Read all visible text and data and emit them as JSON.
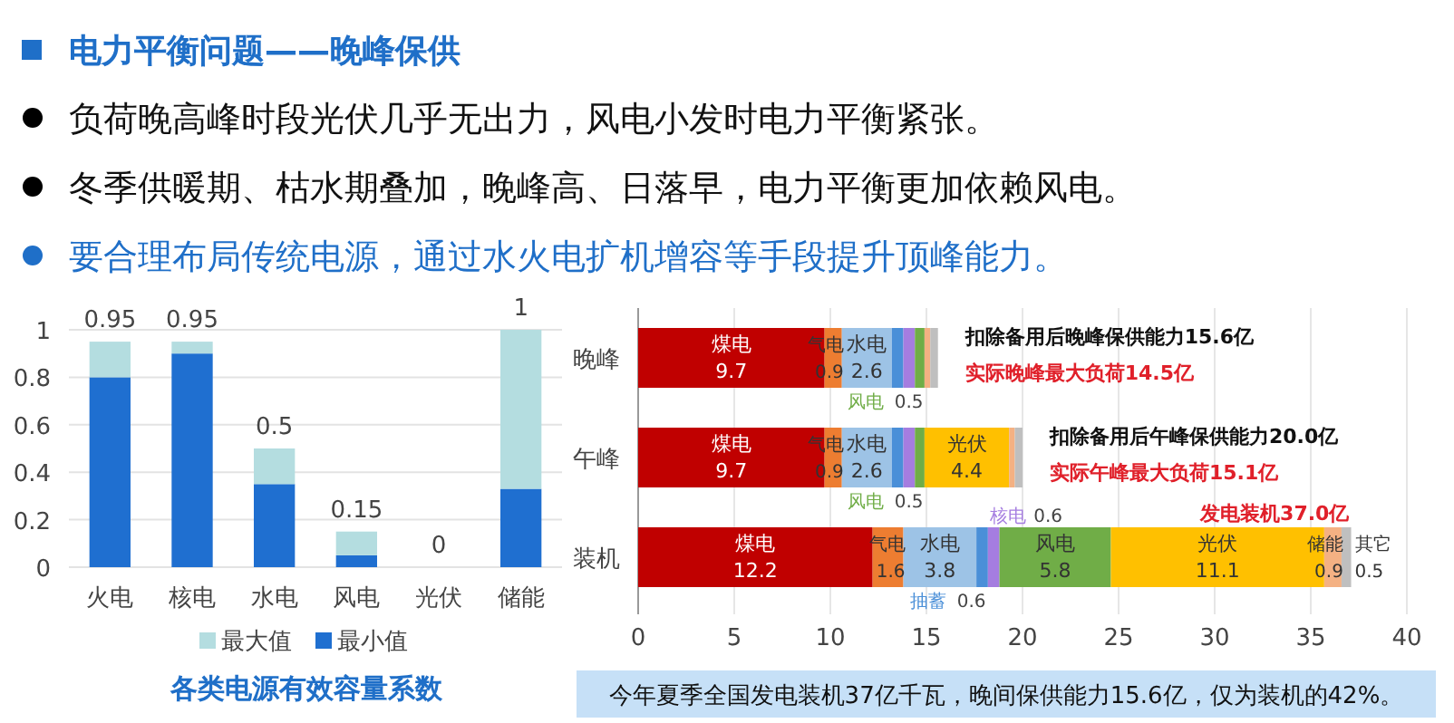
{
  "chart_data": [
    {
      "type": "other",
      "title": "电力平衡问题——晚峰保供",
      "annotations": [
        "负荷晚高峰时段光伏几乎无出力，风电小发时电力平衡紧张。",
        "冬季供暖期、枯水期叠加，晚峰高、日落早，电力平衡更加依赖风电。",
        "要合理布局传统电源，通过水火电扩机增容等手段提升顶峰能力。"
      ]
    },
    {
      "type": "bar",
      "title": "各类电源有效容量系数",
      "categories": [
        "火电",
        "核电",
        "水电",
        "风电",
        "光伏",
        "储能"
      ],
      "stacked": true,
      "series": [
        {
          "name": "最小值",
          "color": "#1f6fd0",
          "values": [
            0.8,
            0.9,
            0.35,
            0.05,
            0,
            0.33
          ]
        },
        {
          "name": "最大值",
          "color": "#b4dde0",
          "values": [
            0.15,
            0.05,
            0.15,
            0.1,
            0,
            0.67
          ]
        }
      ],
      "totals": [
        "0.95",
        "0.95",
        "0.5",
        "0.15",
        "0",
        "1"
      ],
      "ylim": [
        0,
        1
      ],
      "yticks": [
        0,
        0.2,
        0.4,
        0.6,
        0.8,
        1
      ],
      "grid": "y",
      "legend": "bottom"
    },
    {
      "type": "bar",
      "orientation": "horizontal",
      "stacked": true,
      "categories": [
        "晚峰",
        "午峰",
        "装机"
      ],
      "series": [
        {
          "name": "煤电",
          "color": "#c00000",
          "values": [
            9.7,
            9.7,
            12.2
          ],
          "value_labels": [
            "9.7",
            "9.7",
            "12.2"
          ]
        },
        {
          "name": "气电",
          "color": "#ed7d31",
          "values": [
            0.9,
            0.9,
            1.6
          ],
          "value_labels": [
            "0.9",
            "0.9",
            "1.6"
          ]
        },
        {
          "name": "水电",
          "color": "#9dc3e6",
          "values": [
            2.6,
            2.6,
            3.8
          ],
          "value_labels": [
            "2.6",
            "2.6",
            "3.8"
          ]
        },
        {
          "name": "抽蓄",
          "color": "#4a8fd8",
          "values": [
            0.6,
            0.6,
            0.6
          ],
          "value_labels": [
            null,
            null,
            "0.6"
          ]
        },
        {
          "name": "核电",
          "color": "#a57de0",
          "values": [
            0.6,
            0.6,
            0.6
          ],
          "value_labels": [
            null,
            null,
            "0.6"
          ]
        },
        {
          "name": "风电",
          "color": "#70ad47",
          "values": [
            0.5,
            0.5,
            5.8
          ],
          "value_labels": [
            "0.5",
            "0.5",
            "5.8"
          ]
        },
        {
          "name": "光伏",
          "color": "#ffc000",
          "values": [
            null,
            4.4,
            11.1
          ],
          "value_labels": [
            null,
            "4.4",
            "11.1"
          ]
        },
        {
          "name": "储能",
          "color": "#f4b183",
          "values": [
            0.3,
            0.3,
            0.9
          ],
          "value_labels": [
            null,
            null,
            "0.9"
          ]
        },
        {
          "name": "其它",
          "color": "#bfbfbf",
          "values": [
            0.4,
            0.4,
            0.5
          ],
          "value_labels": [
            null,
            null,
            "0.5"
          ]
        }
      ],
      "xlim": [
        0,
        40
      ],
      "xticks": [
        0,
        5,
        10,
        15,
        20,
        25,
        30,
        35,
        40
      ],
      "grid": "x",
      "annotations": [
        {
          "text": "扣除备用后晚峰保供能力15.6亿",
          "x": 15.6,
          "y": "晚峰"
        },
        {
          "text": "实际晚峰最大负荷14.5亿",
          "x": 15.6,
          "y": "晚峰"
        },
        {
          "text": "扣除备用后午峰保供能力20.0亿",
          "x": 20.0,
          "y": "午峰"
        },
        {
          "text": "实际午峰最大负荷15.1亿",
          "x": 20.0,
          "y": "午峰"
        },
        {
          "text": "发电装机37.0亿",
          "x": 37.0,
          "y": "装机"
        },
        "今年夏季全国发电装机37亿千瓦，晚间保供能力15.6亿，仅为装机的42%。"
      ]
    }
  ]
}
